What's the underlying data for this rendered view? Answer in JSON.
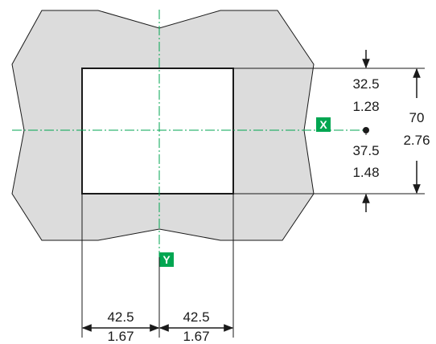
{
  "colors": {
    "panel_fill": "#dcdcdc",
    "outline": "#1a1a1a",
    "centerline": "#00a651",
    "badge": "#00a651",
    "background": "#ffffff"
  },
  "axes": {
    "x_label": "X",
    "y_label": "Y"
  },
  "dimensions": {
    "top_mm": "32.5",
    "top_in": "1.28",
    "bottom_mm": "37.5",
    "bottom_in": "1.48",
    "height_mm": "70",
    "height_in": "2.76",
    "left_width_mm": "42.5",
    "left_width_in": "1.67",
    "right_width_mm": "42.5",
    "right_width_in": "1.67"
  }
}
